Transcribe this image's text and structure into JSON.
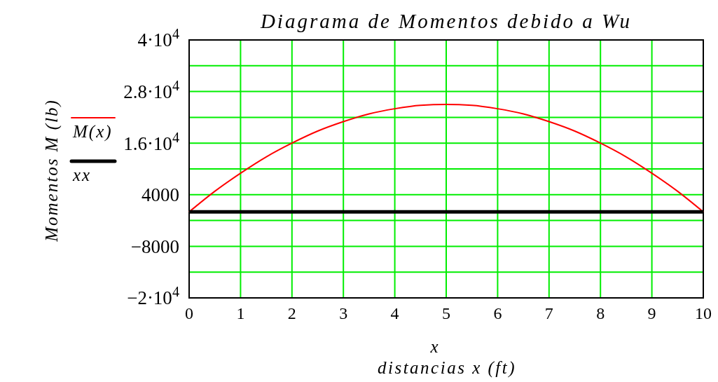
{
  "chart_data": {
    "type": "line",
    "title": "Diagrama de Momentos debido a Wu",
    "xlabel": "distancias x (ft)",
    "ylabel": "Momentos M (lb)",
    "annotations": [
      "x"
    ],
    "x": [
      0,
      0.5,
      1,
      1.5,
      2,
      2.5,
      3,
      3.5,
      4,
      4.5,
      5,
      5.5,
      6,
      6.5,
      7,
      7.5,
      8,
      8.5,
      9,
      9.5,
      10
    ],
    "series": [
      {
        "name": "M(x)",
        "color": "#ff0000",
        "values": [
          0,
          4800,
          9000,
          12800,
          16000,
          18800,
          21000,
          22800,
          24000,
          24800,
          25000,
          24800,
          24000,
          22800,
          21000,
          18800,
          16000,
          12800,
          9000,
          4800,
          0
        ]
      },
      {
        "name": "xx",
        "color": "#000000",
        "x": [
          0,
          10
        ],
        "values": [
          0,
          0
        ]
      }
    ],
    "xlim": [
      0,
      10
    ],
    "xticks": [
      0,
      1,
      2,
      3,
      4,
      5,
      6,
      7,
      8,
      9,
      10
    ],
    "ylim": [
      -20000,
      40000
    ],
    "yticks": [
      {
        "value": -20000,
        "label": "−2·10$^{4}$"
      },
      {
        "value": -14000,
        "label": null
      },
      {
        "value": -8000,
        "label": "−8000"
      },
      {
        "value": -2000,
        "label": null
      },
      {
        "value": 4000,
        "label": "4000"
      },
      {
        "value": 10000,
        "label": null
      },
      {
        "value": 16000,
        "label": "1.6·10$^{4}$"
      },
      {
        "value": 22000,
        "label": null
      },
      {
        "value": 28000,
        "label": "2.8·10$^{4}$"
      },
      {
        "value": 34000,
        "label": null
      },
      {
        "value": 40000,
        "label": "4·10$^{4}$"
      }
    ],
    "grid": true,
    "legend": "left"
  }
}
